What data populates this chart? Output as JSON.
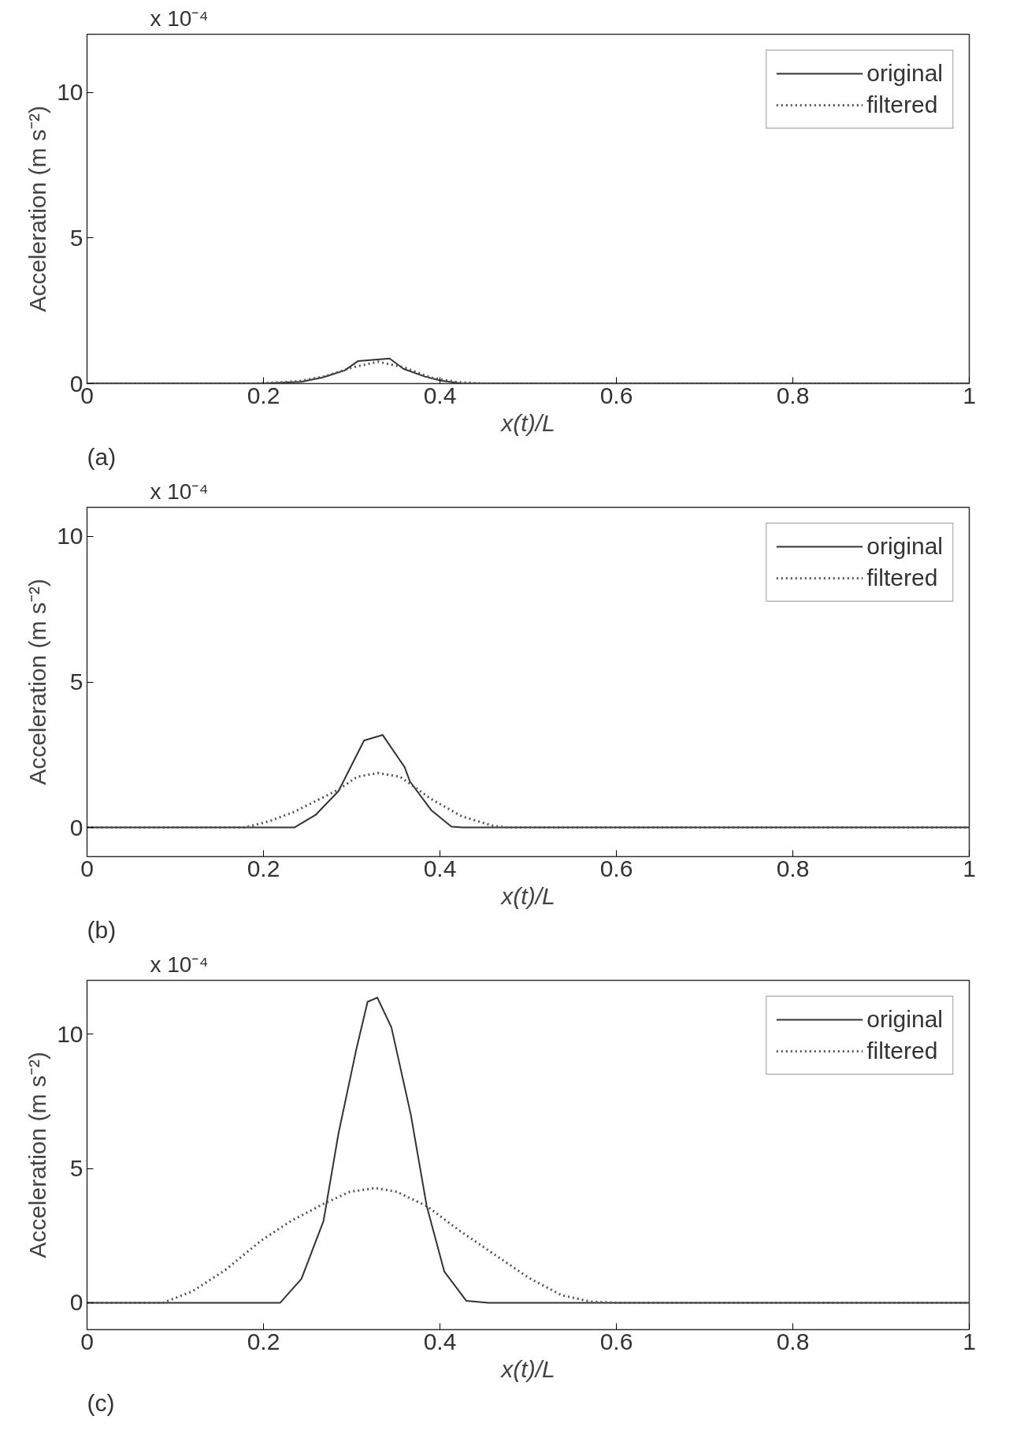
{
  "chart_data": [
    {
      "type": "line",
      "xlabel": "x(t)/L",
      "ylabel": "Acceleration (m s⁻²)",
      "annotations": [
        "x 10⁻⁴",
        "(a)"
      ],
      "xlim": [
        0,
        1
      ],
      "ylim": [
        0,
        12
      ],
      "xticks": [
        0,
        0.2,
        0.4,
        0.6,
        0.8,
        1
      ],
      "yticks": [
        0,
        5,
        10
      ],
      "legend": "top right",
      "grid": false,
      "series": [
        {
          "name": "original",
          "color": "#333333",
          "line_style": "solid",
          "x": [
            0,
            0.2,
            0.243,
            0.267,
            0.292,
            0.307,
            0.343,
            0.359,
            0.383,
            0.401,
            0.425,
            1
          ],
          "values": [
            0,
            0,
            0.06,
            0.21,
            0.45,
            0.77,
            0.86,
            0.5,
            0.24,
            0.1,
            0,
            0
          ]
        },
        {
          "name": "filtered",
          "color": "#555555",
          "line_style": "dotted",
          "x": [
            0,
            0.19,
            0.24,
            0.27,
            0.3,
            0.33,
            0.36,
            0.39,
            0.42,
            0.45,
            1
          ],
          "values": [
            0,
            0,
            0.08,
            0.25,
            0.55,
            0.75,
            0.55,
            0.2,
            0.05,
            0,
            0
          ]
        }
      ]
    },
    {
      "type": "line",
      "xlabel": "x(t)/L",
      "ylabel": "Acceleration (m s⁻²)",
      "annotations": [
        "x 10⁻⁴",
        "(b)"
      ],
      "xlim": [
        0,
        1
      ],
      "ylim": [
        -1,
        11
      ],
      "xticks": [
        0,
        0.2,
        0.4,
        0.6,
        0.8,
        1
      ],
      "yticks": [
        0,
        5,
        10
      ],
      "legend": "top right",
      "grid": false,
      "series": [
        {
          "name": "original",
          "color": "#333333",
          "line_style": "solid",
          "x": [
            0,
            0.235,
            0.259,
            0.285,
            0.314,
            0.335,
            0.36,
            0.366,
            0.39,
            0.413,
            0.425,
            1
          ],
          "values": [
            0,
            0,
            0.43,
            1.25,
            2.99,
            3.18,
            2.07,
            1.58,
            0.6,
            0.03,
            0,
            0
          ]
        },
        {
          "name": "filtered",
          "color": "#555555",
          "line_style": "dotted",
          "x": [
            0,
            0.179,
            0.207,
            0.235,
            0.285,
            0.306,
            0.33,
            0.355,
            0.39,
            0.425,
            0.461,
            0.478,
            1
          ],
          "values": [
            0,
            0,
            0.22,
            0.54,
            1.3,
            1.74,
            1.87,
            1.74,
            0.98,
            0.38,
            0.05,
            0,
            0
          ]
        }
      ]
    },
    {
      "type": "line",
      "xlabel": "x(t)/L",
      "ylabel": "Acceleration (m s⁻²)",
      "annotations": [
        "x 10⁻⁴",
        "(c)"
      ],
      "xlim": [
        0,
        1
      ],
      "ylim": [
        -1,
        12
      ],
      "xticks": [
        0,
        0.2,
        0.4,
        0.6,
        0.8,
        1
      ],
      "yticks": [
        0,
        5,
        10
      ],
      "legend": "top right",
      "grid": false,
      "series": [
        {
          "name": "original",
          "color": "#333333",
          "line_style": "solid",
          "x": [
            0,
            0.219,
            0.243,
            0.268,
            0.285,
            0.305,
            0.318,
            0.329,
            0.345,
            0.367,
            0.385,
            0.405,
            0.43,
            0.455,
            1
          ],
          "values": [
            0,
            0,
            0.89,
            3.04,
            6.3,
            9.4,
            11.2,
            11.36,
            10.25,
            7.0,
            3.6,
            1.16,
            0.07,
            0,
            0
          ]
        },
        {
          "name": "filtered",
          "color": "#555555",
          "line_style": "dotted",
          "x": [
            0,
            0.086,
            0.119,
            0.156,
            0.198,
            0.231,
            0.268,
            0.298,
            0.327,
            0.351,
            0.385,
            0.422,
            0.463,
            0.501,
            0.538,
            0.571,
            0.6,
            1
          ],
          "values": [
            0,
            0,
            0.42,
            1.2,
            2.33,
            3.04,
            3.68,
            4.13,
            4.27,
            4.13,
            3.6,
            2.69,
            1.77,
            0.92,
            0.28,
            0.04,
            0,
            0
          ]
        }
      ]
    }
  ]
}
